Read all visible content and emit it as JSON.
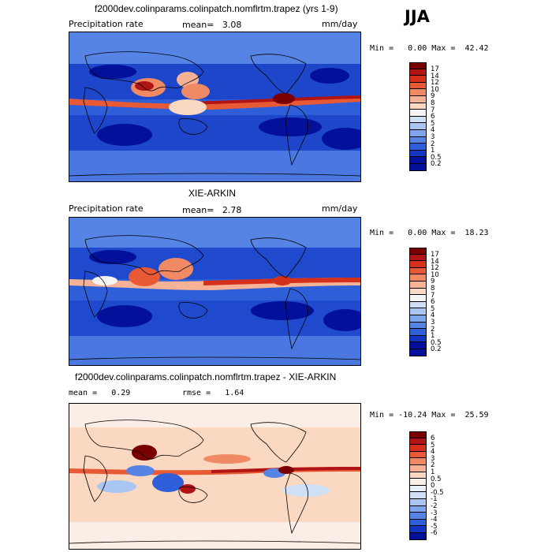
{
  "season": "JJA",
  "panels": [
    {
      "title": "f2000dev.colinparams.colinpatch.nomflrtm.trapez (yrs 1-9)",
      "left_label": "Precipitation rate",
      "mean_label": "mean=",
      "mean_value": "3.08",
      "units": "mm/day",
      "min_label": "Min =",
      "min_value": "0.00",
      "max_label": "Max =",
      "max_value": "42.42",
      "levels": [
        "17",
        "14",
        "12",
        "10",
        "9",
        "8",
        "7",
        "6",
        "5",
        "4",
        "3",
        "2",
        "1",
        "0.5",
        "0.2"
      ],
      "colors": [
        "#7a0000",
        "#b01414",
        "#d4301c",
        "#e85a36",
        "#f08a64",
        "#f6b294",
        "#fbd8c2",
        "#f4f4f4",
        "#cfe0f6",
        "#a9c6f2",
        "#7ea6ec",
        "#5584e4",
        "#2e5fd8",
        "#1236c2",
        "#02109a"
      ]
    },
    {
      "title": "XIE-ARKIN",
      "left_label": "Precipitation rate",
      "mean_label": "mean=",
      "mean_value": "2.78",
      "units": "mm/day",
      "min_label": "Min =",
      "min_value": "0.00",
      "max_label": "Max =",
      "max_value": "18.23",
      "levels": [
        "17",
        "14",
        "12",
        "10",
        "9",
        "8",
        "7",
        "6",
        "5",
        "4",
        "3",
        "2",
        "1",
        "0.5",
        "0.2"
      ],
      "colors": [
        "#7a0000",
        "#b01414",
        "#d4301c",
        "#e85a36",
        "#f08a64",
        "#f6b294",
        "#fbd8c2",
        "#f4f4f4",
        "#cfe0f6",
        "#a9c6f2",
        "#7ea6ec",
        "#5584e4",
        "#2e5fd8",
        "#1236c2",
        "#02109a"
      ]
    },
    {
      "title": "f2000dev.colinparams.colinpatch.nomflrtm.trapez - XIE-ARKIN",
      "mean_label": "mean =",
      "mean_value": "0.29",
      "rmse_label": "rmse =",
      "rmse_value": "1.64",
      "min_label": "Min =",
      "min_value": "-10.24",
      "max_label": "Max =",
      "max_value": "25.59",
      "levels": [
        "6",
        "5",
        "4",
        "3",
        "2",
        "1",
        "0.5",
        "0",
        "-0.5",
        "-1",
        "-2",
        "-3",
        "-4",
        "-5",
        "-6"
      ],
      "colors": [
        "#7a0000",
        "#b01414",
        "#d4301c",
        "#e85a36",
        "#f08a64",
        "#f6b294",
        "#fbd8c2",
        "#fbeee6",
        "#eaf0fa",
        "#cfe0f6",
        "#a9c6f2",
        "#7ea6ec",
        "#5584e4",
        "#2e5fd8",
        "#1236c2",
        "#02109a"
      ]
    }
  ]
}
